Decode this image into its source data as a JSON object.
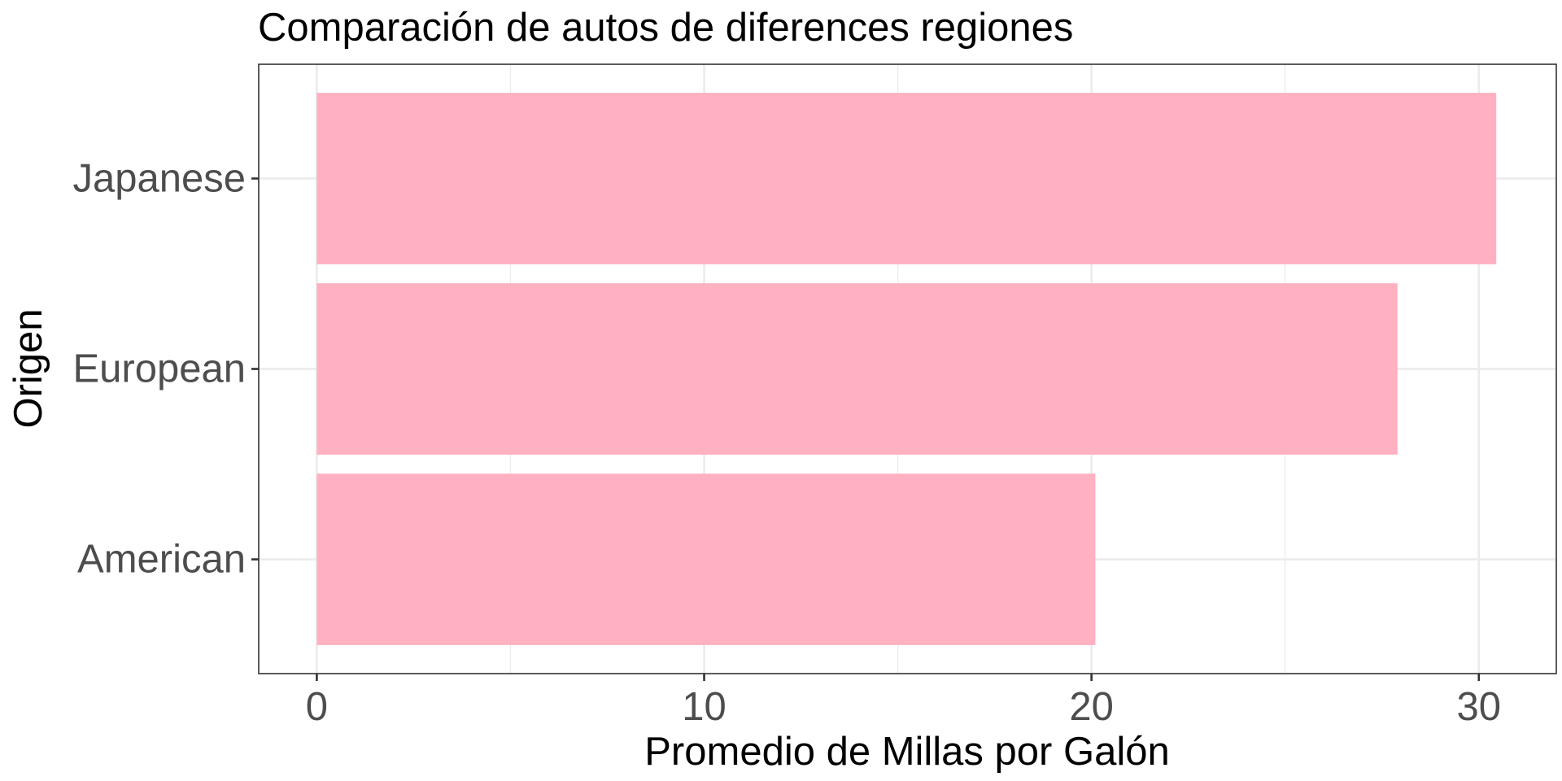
{
  "chart_data": {
    "type": "bar",
    "orientation": "horizontal",
    "title": "Comparación de autos de diferences regiones",
    "xlabel": "Promedio de Millas por Galón",
    "ylabel": "Origen",
    "categories": [
      "American",
      "European",
      "Japanese"
    ],
    "values": [
      20.1,
      27.9,
      30.45
    ],
    "xlim": [
      -1.5,
      32
    ],
    "xticks": [
      0,
      10,
      20,
      30
    ],
    "xminor": [
      5,
      15,
      25
    ],
    "grid": true,
    "legend": "none",
    "bar_color": "#ffb0c1"
  }
}
